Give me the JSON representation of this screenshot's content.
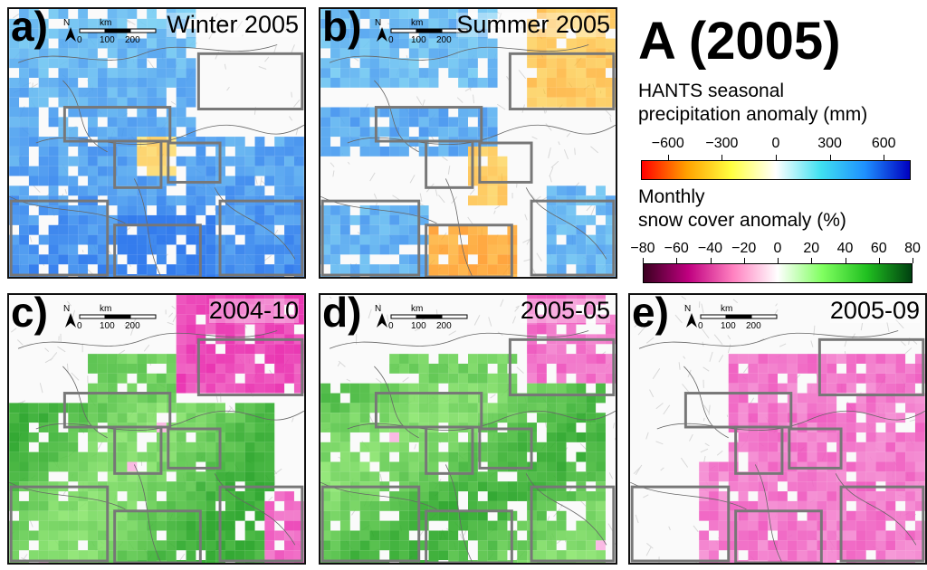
{
  "main_title": "A (2005)",
  "compass_letter": "N",
  "scale_bar": {
    "unit": "km",
    "ticks": [
      "0",
      "100",
      "200"
    ]
  },
  "panels": [
    {
      "label": "a)",
      "title": "Winter 2005",
      "variable": "precipitation"
    },
    {
      "label": "b)",
      "title": "Summer 2005",
      "variable": "precipitation"
    },
    {
      "label": "c)",
      "title": "2004-10",
      "variable": "snow"
    },
    {
      "label": "d)",
      "title": "2005-05",
      "variable": "snow"
    },
    {
      "label": "e)",
      "title": "2005-09",
      "variable": "snow"
    }
  ],
  "precip_legend": {
    "title_line1": "HANTS seasonal",
    "title_line2": "precipitation anomaly (mm)",
    "ticks": [
      "−600",
      "−300",
      "0",
      "300",
      "600"
    ],
    "colors": [
      "#ff0000",
      "#ffa000",
      "#ffff40",
      "#ffffff",
      "#40e0f0",
      "#1e90ff",
      "#0000c0"
    ]
  },
  "snow_legend": {
    "title_line1": "Monthly",
    "title_line2": "snow cover anomaly (%)",
    "ticks": [
      "−80",
      "−60",
      "−40",
      "−20",
      "0",
      "20",
      "40",
      "60",
      "80"
    ],
    "colors": [
      "#3a0020",
      "#c00080",
      "#ff80c0",
      "#ffffff",
      "#80ff60",
      "#20c020",
      "#004010"
    ]
  }
}
